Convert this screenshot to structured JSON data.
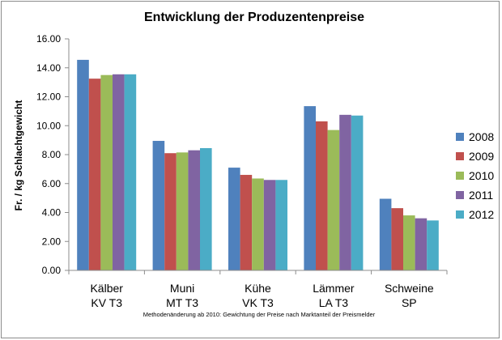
{
  "chart_data": {
    "type": "bar",
    "title": "Entwicklung der Produzentenpreise",
    "ylabel": "Fr. / kg Schlachtgewicht",
    "xlabel": "",
    "ylim": [
      0,
      16
    ],
    "yticks": [
      "0.00",
      "2.00",
      "4.00",
      "6.00",
      "8.00",
      "10.00",
      "12.00",
      "14.00",
      "16.00"
    ],
    "categories": [
      {
        "line1": "Kälber",
        "line2": "KV T3"
      },
      {
        "line1": "Muni",
        "line2": "MT T3"
      },
      {
        "line1": "Kühe",
        "line2": "VK T3"
      },
      {
        "line1": "Lämmer",
        "line2": "LA T3"
      },
      {
        "line1": "Schweine",
        "line2": "SP"
      }
    ],
    "series": [
      {
        "name": "2008",
        "color": "#4f81bd",
        "values": [
          14.55,
          8.95,
          7.1,
          11.35,
          4.95
        ]
      },
      {
        "name": "2009",
        "color": "#c0504d",
        "values": [
          13.25,
          8.1,
          6.6,
          10.3,
          4.3
        ]
      },
      {
        "name": "2010",
        "color": "#9bbb59",
        "values": [
          13.5,
          8.15,
          6.35,
          9.7,
          3.8
        ]
      },
      {
        "name": "2011",
        "color": "#8064a2",
        "values": [
          13.55,
          8.3,
          6.25,
          10.75,
          3.6
        ]
      },
      {
        "name": "2012",
        "color": "#4bacc6",
        "values": [
          13.55,
          8.45,
          6.25,
          10.7,
          3.45
        ]
      }
    ],
    "legend_position": "right",
    "grid": false,
    "footnote": "Methodenänderung ab 2010: Gewichtung der Preise nach Marktanteil der Preismelder"
  }
}
